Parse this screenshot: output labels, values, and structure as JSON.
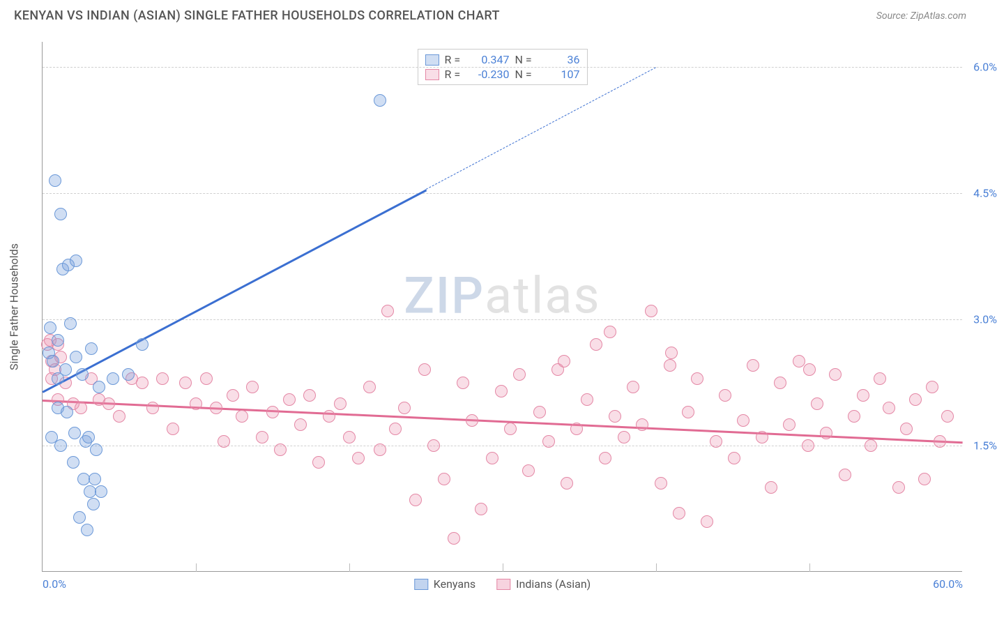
{
  "header": {
    "title": "KENYAN VS INDIAN (ASIAN) SINGLE FATHER HOUSEHOLDS CORRELATION CHART",
    "source": "Source: ZipAtlas.com"
  },
  "watermark": {
    "part1": "ZIP",
    "part2": "atlas"
  },
  "chart": {
    "type": "scatter",
    "background_color": "#ffffff",
    "grid_color": "#d8d8d8",
    "axis_color": "#999999",
    "tick_label_color": "#4a80d6",
    "axis_label_color": "#555555",
    "y_axis_label": "Single Father Households",
    "xlim": [
      0,
      60
    ],
    "ylim": [
      0,
      6.3
    ],
    "x_ticks": [
      {
        "value": 0.0,
        "label": "0.0%"
      },
      {
        "value": 60.0,
        "label": "60.0%"
      }
    ],
    "x_minor_ticks": [
      10,
      20,
      30,
      40,
      50
    ],
    "y_ticks": [
      {
        "value": 1.5,
        "label": "1.5%"
      },
      {
        "value": 3.0,
        "label": "3.0%"
      },
      {
        "value": 4.5,
        "label": "4.5%"
      },
      {
        "value": 6.0,
        "label": "6.0%"
      }
    ],
    "series": [
      {
        "name": "Kenyans",
        "fill_color": "rgba(120,160,220,0.35)",
        "stroke_color": "#6a98d8",
        "line_color": "#3b6fd1",
        "marker_radius": 9,
        "R": "0.347",
        "N": "36",
        "regression": {
          "x1": 0,
          "y1": 2.15,
          "x2_solid": 25,
          "y2_solid": 4.55,
          "x2_dash": 40,
          "y2_dash": 6.0
        },
        "points": [
          [
            0.4,
            2.6
          ],
          [
            0.5,
            2.9
          ],
          [
            0.7,
            2.5
          ],
          [
            0.8,
            4.65
          ],
          [
            1.2,
            4.25
          ],
          [
            1.0,
            2.75
          ],
          [
            1.3,
            3.6
          ],
          [
            1.7,
            3.65
          ],
          [
            2.2,
            3.7
          ],
          [
            1.0,
            2.3
          ],
          [
            1.5,
            2.4
          ],
          [
            1.8,
            2.95
          ],
          [
            2.2,
            2.55
          ],
          [
            2.6,
            2.35
          ],
          [
            3.2,
            2.65
          ],
          [
            3.7,
            2.2
          ],
          [
            4.6,
            2.3
          ],
          [
            5.6,
            2.35
          ],
          [
            6.5,
            2.7
          ],
          [
            1.0,
            1.95
          ],
          [
            1.6,
            1.9
          ],
          [
            2.1,
            1.65
          ],
          [
            2.8,
            1.55
          ],
          [
            2.0,
            1.3
          ],
          [
            2.7,
            1.1
          ],
          [
            3.1,
            0.95
          ],
          [
            3.3,
            0.8
          ],
          [
            3.0,
            1.6
          ],
          [
            3.5,
            1.45
          ],
          [
            2.4,
            0.65
          ],
          [
            2.9,
            0.5
          ],
          [
            3.4,
            1.1
          ],
          [
            3.8,
            0.95
          ],
          [
            0.6,
            1.6
          ],
          [
            1.2,
            1.5
          ],
          [
            22.0,
            5.6
          ]
        ]
      },
      {
        "name": "Indians (Asian)",
        "fill_color": "rgba(235,145,175,0.30)",
        "stroke_color": "#e487a5",
        "line_color": "#e16b93",
        "marker_radius": 9,
        "R": "-0.230",
        "N": "107",
        "regression": {
          "x1": 0,
          "y1": 2.05,
          "x2_solid": 60,
          "y2_solid": 1.55,
          "x2_dash": 60,
          "y2_dash": 1.55
        },
        "points": [
          [
            0.3,
            2.7
          ],
          [
            0.5,
            2.75
          ],
          [
            0.6,
            2.5
          ],
          [
            0.8,
            2.4
          ],
          [
            1.0,
            2.7
          ],
          [
            1.2,
            2.55
          ],
          [
            0.6,
            2.3
          ],
          [
            1.0,
            2.05
          ],
          [
            1.5,
            2.25
          ],
          [
            2.0,
            2.0
          ],
          [
            2.5,
            1.95
          ],
          [
            3.2,
            2.3
          ],
          [
            3.7,
            2.05
          ],
          [
            4.3,
            2.0
          ],
          [
            5.0,
            1.85
          ],
          [
            5.8,
            2.3
          ],
          [
            6.5,
            2.25
          ],
          [
            7.2,
            1.95
          ],
          [
            7.8,
            2.3
          ],
          [
            8.5,
            1.7
          ],
          [
            9.3,
            2.25
          ],
          [
            10.0,
            2.0
          ],
          [
            10.7,
            2.3
          ],
          [
            11.3,
            1.95
          ],
          [
            11.8,
            1.55
          ],
          [
            12.4,
            2.1
          ],
          [
            13.0,
            1.85
          ],
          [
            13.7,
            2.2
          ],
          [
            14.3,
            1.6
          ],
          [
            15.0,
            1.9
          ],
          [
            15.5,
            1.45
          ],
          [
            16.1,
            2.05
          ],
          [
            16.8,
            1.75
          ],
          [
            17.4,
            2.1
          ],
          [
            18.0,
            1.3
          ],
          [
            18.7,
            1.85
          ],
          [
            19.4,
            2.0
          ],
          [
            20.0,
            1.6
          ],
          [
            20.6,
            1.35
          ],
          [
            21.3,
            2.2
          ],
          [
            22.0,
            1.45
          ],
          [
            22.5,
            3.1
          ],
          [
            23.0,
            1.7
          ],
          [
            23.6,
            1.95
          ],
          [
            24.3,
            0.85
          ],
          [
            24.9,
            2.4
          ],
          [
            25.5,
            1.5
          ],
          [
            26.2,
            1.1
          ],
          [
            26.8,
            0.4
          ],
          [
            27.4,
            2.25
          ],
          [
            28.0,
            1.8
          ],
          [
            28.6,
            0.75
          ],
          [
            29.3,
            1.35
          ],
          [
            29.9,
            2.15
          ],
          [
            30.5,
            1.7
          ],
          [
            31.1,
            2.35
          ],
          [
            31.7,
            1.2
          ],
          [
            32.4,
            1.9
          ],
          [
            33.0,
            1.55
          ],
          [
            33.6,
            2.4
          ],
          [
            34.2,
            1.05
          ],
          [
            34.8,
            1.7
          ],
          [
            35.5,
            2.05
          ],
          [
            36.1,
            2.7
          ],
          [
            36.7,
            1.35
          ],
          [
            37.3,
            1.85
          ],
          [
            37.9,
            1.6
          ],
          [
            38.5,
            2.2
          ],
          [
            39.1,
            1.75
          ],
          [
            39.7,
            3.1
          ],
          [
            40.3,
            1.05
          ],
          [
            40.9,
            2.45
          ],
          [
            41.5,
            0.7
          ],
          [
            42.1,
            1.9
          ],
          [
            42.7,
            2.3
          ],
          [
            43.3,
            0.6
          ],
          [
            43.9,
            1.55
          ],
          [
            44.5,
            2.1
          ],
          [
            45.1,
            1.35
          ],
          [
            45.7,
            1.8
          ],
          [
            46.3,
            2.45
          ],
          [
            46.9,
            1.6
          ],
          [
            47.5,
            1.0
          ],
          [
            48.1,
            2.25
          ],
          [
            48.7,
            1.75
          ],
          [
            49.3,
            2.5
          ],
          [
            49.9,
            1.5
          ],
          [
            50.5,
            2.0
          ],
          [
            51.1,
            1.65
          ],
          [
            51.7,
            2.35
          ],
          [
            52.3,
            1.15
          ],
          [
            52.9,
            1.85
          ],
          [
            53.5,
            2.1
          ],
          [
            54.0,
            1.5
          ],
          [
            54.6,
            2.3
          ],
          [
            55.2,
            1.95
          ],
          [
            55.8,
            1.0
          ],
          [
            56.3,
            1.7
          ],
          [
            56.9,
            2.05
          ],
          [
            57.5,
            1.1
          ],
          [
            58.0,
            2.2
          ],
          [
            58.5,
            1.55
          ],
          [
            59.0,
            1.85
          ],
          [
            50.0,
            2.4
          ],
          [
            41.0,
            2.6
          ],
          [
            37.0,
            2.85
          ],
          [
            34.0,
            2.5
          ]
        ]
      }
    ],
    "legend_top": {
      "labels": {
        "R": "R =",
        "N": "N ="
      }
    },
    "legend_bottom": [
      {
        "color_fill": "rgba(120,160,220,0.45)",
        "color_stroke": "#6a98d8",
        "label": "Kenyans"
      },
      {
        "color_fill": "rgba(235,145,175,0.40)",
        "color_stroke": "#e487a5",
        "label": "Indians (Asian)"
      }
    ]
  }
}
